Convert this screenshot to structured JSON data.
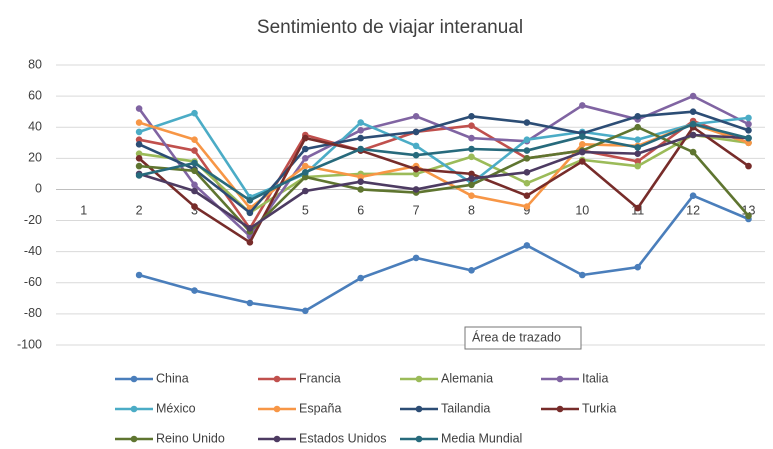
{
  "chart_data": {
    "type": "line",
    "title": "Sentimiento de viajar interanual",
    "categories": [
      "1",
      "2",
      "3",
      "4",
      "5",
      "6",
      "7",
      "8",
      "9",
      "10",
      "11",
      "12",
      "13"
    ],
    "ylim": [
      -100,
      80
    ],
    "yticks": [
      -100,
      -80,
      -60,
      -40,
      -20,
      0,
      20,
      40,
      60,
      80
    ],
    "grid": true,
    "legend": "bottom",
    "annotation": "Área de trazado",
    "series": [
      {
        "name": "China",
        "color": "#4a7ebb",
        "values": [
          null,
          -55,
          -65,
          -73,
          -78,
          -57,
          -44,
          -52,
          -36,
          -55,
          -50,
          -4,
          -19
        ]
      },
      {
        "name": "Francia",
        "color": "#c0504d",
        "values": [
          null,
          32,
          25,
          -25,
          35,
          25,
          37,
          41,
          20,
          25,
          18,
          44,
          30
        ]
      },
      {
        "name": "Alemania",
        "color": "#9bbb59",
        "values": [
          null,
          23,
          18,
          -15,
          8,
          10,
          10,
          21,
          4,
          19,
          15,
          35,
          30
        ]
      },
      {
        "name": "Italia",
        "color": "#8064a2",
        "values": [
          null,
          52,
          3,
          -30,
          20,
          38,
          47,
          33,
          31,
          54,
          45,
          60,
          42
        ]
      },
      {
        "name": "México",
        "color": "#4bacc6",
        "values": [
          null,
          37,
          49,
          -5,
          10,
          43,
          28,
          4,
          32,
          37,
          32,
          42,
          46
        ]
      },
      {
        "name": "España",
        "color": "#f79646",
        "values": [
          null,
          43,
          32,
          -12,
          15,
          8,
          15,
          -4,
          -11,
          29,
          28,
          42,
          30
        ]
      },
      {
        "name": "Tailandia",
        "color": "#2c4d75",
        "values": [
          null,
          29,
          13,
          -15,
          26,
          33,
          37,
          47,
          43,
          36,
          47,
          50,
          38
        ]
      },
      {
        "name": "Turkia",
        "color": "#772c2a",
        "values": [
          null,
          20,
          -11,
          -34,
          33,
          25,
          13,
          10,
          -4,
          18,
          -12,
          40,
          15
        ]
      },
      {
        "name": "Reino Unido",
        "color": "#5f7530",
        "values": [
          null,
          15,
          12,
          -27,
          8,
          0,
          -2,
          3,
          20,
          25,
          40,
          24,
          -17
        ]
      },
      {
        "name": "Estados Unidos",
        "color": "#4d3b62",
        "values": [
          null,
          10,
          -1,
          -25,
          -1,
          5,
          0,
          7,
          11,
          24,
          23,
          35,
          33
        ]
      },
      {
        "name": "Media Mundial",
        "color": "#276a7c",
        "values": [
          null,
          9,
          17,
          -7,
          11,
          26,
          22,
          26,
          25,
          34,
          27,
          42,
          33
        ]
      }
    ]
  }
}
